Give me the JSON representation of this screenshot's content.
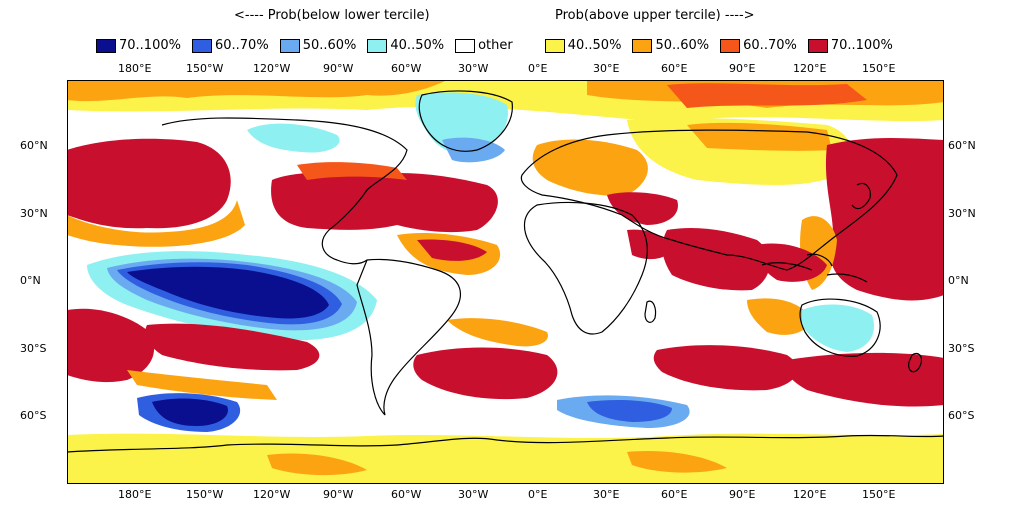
{
  "header": {
    "left": "<---- Prob(below lower tercile)",
    "right": "Prob(above upper tercile) ---->"
  },
  "legend": [
    {
      "label": "70..100%",
      "color": "#0a0f8f"
    },
    {
      "label": "60..70%",
      "color": "#2f5fe0"
    },
    {
      "label": "50..60%",
      "color": "#6aaaf0"
    },
    {
      "label": "40..50%",
      "color": "#8ef0f0"
    },
    {
      "label": "other",
      "color": "#ffffff"
    },
    {
      "label": "40..50%",
      "color": "#fbf24a"
    },
    {
      "label": "50..60%",
      "color": "#fca311"
    },
    {
      "label": "60..70%",
      "color": "#f5561a"
    },
    {
      "label": "70..100%",
      "color": "#c8102e"
    }
  ],
  "axes": {
    "lon_labels": [
      "180°E",
      "150°W",
      "120°W",
      "90°W",
      "60°W",
      "30°W",
      "0°E",
      "30°E",
      "60°E",
      "90°E",
      "120°E",
      "150°E"
    ],
    "lat_labels": [
      "60°N",
      "30°N",
      "0°N",
      "30°S",
      "60°S"
    ]
  }
}
